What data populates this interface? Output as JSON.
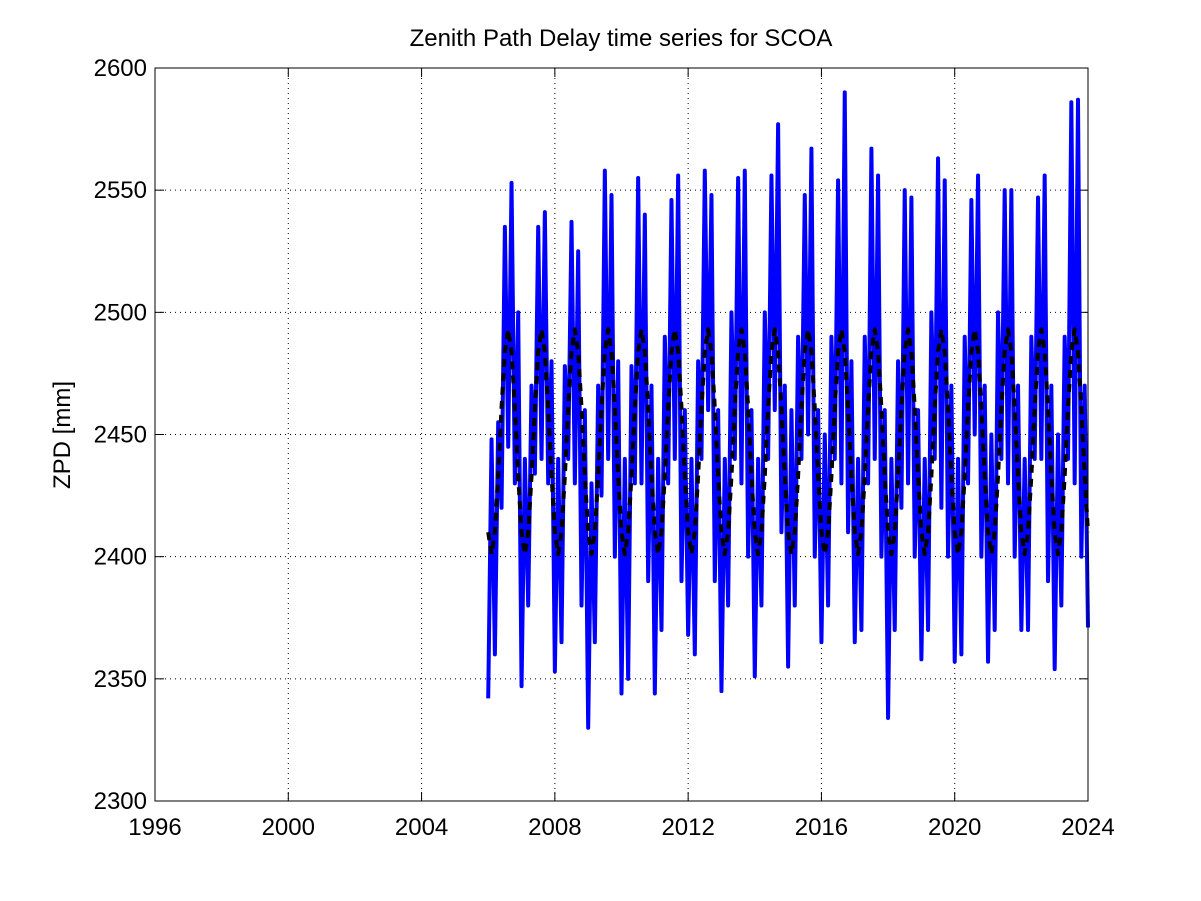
{
  "chart_data": {
    "type": "line",
    "title": "Zenith Path Delay time series for SCOA",
    "y_label": "ZPD [mm]",
    "xlim": [
      1996,
      2024
    ],
    "xticks": [
      1996,
      2000,
      2004,
      2008,
      2012,
      2016,
      2020,
      2024
    ],
    "ylim": [
      2300,
      2600
    ],
    "yticks": [
      2300,
      2350,
      2400,
      2450,
      2500,
      2550,
      2600
    ],
    "grid": true,
    "x": [
      2006,
      2006.1,
      2006.2,
      2006.3,
      2006.4,
      2006.5,
      2006.6,
      2006.7,
      2006.8,
      2006.9,
      2007,
      2007.1,
      2007.2,
      2007.3,
      2007.4,
      2007.5,
      2007.6,
      2007.7,
      2007.8,
      2007.9,
      2008,
      2008.1,
      2008.2,
      2008.3,
      2008.4,
      2008.5,
      2008.6,
      2008.7,
      2008.8,
      2008.9,
      2009,
      2009.1,
      2009.2,
      2009.3,
      2009.4,
      2009.5,
      2009.6,
      2009.7,
      2009.8,
      2009.9,
      2010,
      2010.1,
      2010.2,
      2010.3,
      2010.4,
      2010.5,
      2010.6,
      2010.7,
      2010.8,
      2010.9,
      2011,
      2011.1,
      2011.2,
      2011.3,
      2011.4,
      2011.5,
      2011.6,
      2011.7,
      2011.8,
      2011.9,
      2012,
      2012.1,
      2012.2,
      2012.3,
      2012.4,
      2012.5,
      2012.6,
      2012.7,
      2012.8,
      2012.9,
      2013,
      2013.1,
      2013.2,
      2013.3,
      2013.4,
      2013.5,
      2013.6,
      2013.7,
      2013.8,
      2013.9,
      2014,
      2014.1,
      2014.2,
      2014.3,
      2014.4,
      2014.5,
      2014.6,
      2014.7,
      2014.8,
      2014.9,
      2015,
      2015.1,
      2015.2,
      2015.3,
      2015.4,
      2015.5,
      2015.6,
      2015.7,
      2015.8,
      2015.9,
      2016,
      2016.1,
      2016.2,
      2016.3,
      2016.4,
      2016.5,
      2016.6,
      2016.7,
      2016.8,
      2016.9,
      2017,
      2017.1,
      2017.2,
      2017.3,
      2017.4,
      2017.5,
      2017.6,
      2017.7,
      2017.8,
      2017.9,
      2018,
      2018.1,
      2018.2,
      2018.3,
      2018.4,
      2018.5,
      2018.6,
      2018.7,
      2018.8,
      2018.9,
      2019,
      2019.1,
      2019.2,
      2019.3,
      2019.4,
      2019.5,
      2019.6,
      2019.7,
      2019.8,
      2019.9,
      2020,
      2020.1,
      2020.2,
      2020.3,
      2020.4,
      2020.5,
      2020.6,
      2020.7,
      2020.8,
      2020.9,
      2021,
      2021.1,
      2021.2,
      2021.3,
      2021.4,
      2021.5,
      2021.6,
      2021.7,
      2021.8,
      2021.9,
      2022,
      2022.1,
      2022.2,
      2022.3,
      2022.4,
      2022.5,
      2022.6,
      2022.7,
      2022.8,
      2022.9,
      2023,
      2023.1,
      2023.2,
      2023.3,
      2023.4,
      2023.5,
      2023.6,
      2023.7,
      2023.8,
      2023.9,
      2024
    ],
    "series": [
      {
        "color": "#0000ff",
        "dash": false,
        "values": [
          2342,
          2448,
          2360,
          2455,
          2420,
          2535,
          2445,
          2553,
          2430,
          2500,
          2347,
          2440,
          2380,
          2470,
          2434,
          2535,
          2440,
          2541,
          2430,
          2480,
          2353,
          2440,
          2365,
          2478,
          2440,
          2537,
          2430,
          2525,
          2380,
          2460,
          2330,
          2430,
          2365,
          2470,
          2425,
          2558,
          2440,
          2548,
          2400,
          2480,
          2344,
          2440,
          2350,
          2478,
          2430,
          2555,
          2430,
          2540,
          2390,
          2470,
          2344,
          2440,
          2370,
          2490,
          2430,
          2546,
          2440,
          2556,
          2390,
          2460,
          2368,
          2440,
          2360,
          2480,
          2440,
          2558,
          2460,
          2548,
          2390,
          2460,
          2345,
          2440,
          2380,
          2500,
          2440,
          2555,
          2430,
          2558,
          2400,
          2460,
          2351,
          2440,
          2380,
          2500,
          2440,
          2556,
          2460,
          2577,
          2410,
          2470,
          2355,
          2460,
          2380,
          2490,
          2440,
          2548,
          2450,
          2567,
          2400,
          2460,
          2365,
          2450,
          2380,
          2490,
          2440,
          2554,
          2430,
          2590,
          2410,
          2480,
          2365,
          2440,
          2370,
          2490,
          2430,
          2567,
          2440,
          2556,
          2400,
          2460,
          2334,
          2440,
          2370,
          2480,
          2420,
          2550,
          2430,
          2547,
          2400,
          2460,
          2358,
          2440,
          2370,
          2500,
          2440,
          2563,
          2420,
          2554,
          2400,
          2470,
          2357,
          2440,
          2360,
          2490,
          2430,
          2546,
          2450,
          2556,
          2400,
          2470,
          2357,
          2450,
          2370,
          2500,
          2440,
          2550,
          2430,
          2550,
          2400,
          2470,
          2370,
          2440,
          2370,
          2490,
          2440,
          2547,
          2440,
          2556,
          2390,
          2470,
          2354,
          2450,
          2380,
          2490,
          2440,
          2586,
          2430,
          2587,
          2400,
          2470,
          2371
        ]
      },
      {
        "color": "#000000",
        "dash": true,
        "values": [
          2410,
          2401,
          2410,
          2433,
          2461,
          2484,
          2493,
          2484,
          2461,
          2433,
          2410,
          2401,
          2410,
          2433,
          2461,
          2484,
          2493,
          2484,
          2461,
          2433,
          2410,
          2401,
          2410,
          2433,
          2461,
          2484,
          2493,
          2484,
          2461,
          2433,
          2410,
          2401,
          2410,
          2433,
          2461,
          2484,
          2493,
          2484,
          2461,
          2433,
          2410,
          2401,
          2410,
          2433,
          2461,
          2484,
          2493,
          2484,
          2461,
          2433,
          2410,
          2401,
          2410,
          2433,
          2461,
          2484,
          2493,
          2484,
          2461,
          2433,
          2410,
          2401,
          2410,
          2433,
          2461,
          2484,
          2493,
          2484,
          2461,
          2433,
          2410,
          2401,
          2410,
          2433,
          2461,
          2484,
          2493,
          2484,
          2461,
          2433,
          2410,
          2401,
          2410,
          2433,
          2461,
          2484,
          2493,
          2484,
          2461,
          2433,
          2410,
          2401,
          2410,
          2433,
          2461,
          2484,
          2493,
          2484,
          2461,
          2433,
          2410,
          2401,
          2410,
          2433,
          2461,
          2484,
          2493,
          2484,
          2461,
          2433,
          2410,
          2401,
          2410,
          2433,
          2461,
          2484,
          2493,
          2484,
          2461,
          2433,
          2410,
          2401,
          2410,
          2433,
          2461,
          2484,
          2493,
          2484,
          2461,
          2433,
          2410,
          2401,
          2410,
          2433,
          2461,
          2484,
          2493,
          2484,
          2461,
          2433,
          2410,
          2401,
          2410,
          2433,
          2461,
          2484,
          2493,
          2484,
          2461,
          2433,
          2410,
          2401,
          2410,
          2433,
          2461,
          2484,
          2493,
          2484,
          2461,
          2433,
          2410,
          2401,
          2410,
          2433,
          2461,
          2484,
          2493,
          2484,
          2461,
          2433,
          2410,
          2401,
          2410,
          2433,
          2461,
          2484,
          2493,
          2484,
          2461,
          2433,
          2410
        ]
      }
    ]
  }
}
